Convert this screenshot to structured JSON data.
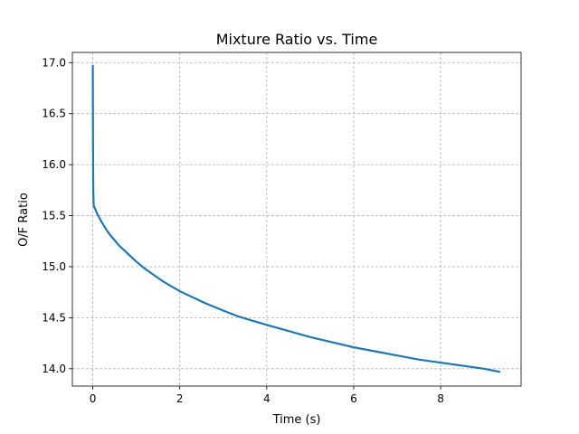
{
  "chart_data": {
    "type": "line",
    "title": "Mixture Ratio vs. Time",
    "xlabel": "Time (s)",
    "ylabel": "O/F Ratio",
    "xlim": [
      -0.47,
      9.85
    ],
    "ylim": [
      13.83,
      17.1
    ],
    "xticks": [
      0,
      2,
      4,
      6,
      8
    ],
    "yticks": [
      14.0,
      14.5,
      15.0,
      15.5,
      16.0,
      16.5,
      17.0
    ],
    "grid": true,
    "series": [
      {
        "color": "#1f77b4",
        "x": [
          0,
          0.005,
          0.01,
          0.02,
          0.05,
          0.1,
          0.2,
          0.3,
          0.4,
          0.5,
          0.6,
          0.8,
          1.0,
          1.2,
          1.4,
          1.6,
          1.8,
          2.0,
          2.3,
          2.6,
          3.0,
          3.3,
          3.6,
          4.0,
          4.5,
          5.0,
          5.5,
          6.0,
          6.5,
          7.0,
          7.5,
          8.0,
          8.5,
          9.0,
          9.35
        ],
        "y": [
          16.97,
          16.2,
          15.75,
          15.6,
          15.57,
          15.52,
          15.44,
          15.37,
          15.31,
          15.26,
          15.21,
          15.13,
          15.05,
          14.98,
          14.92,
          14.86,
          14.81,
          14.76,
          14.7,
          14.64,
          14.57,
          14.52,
          14.48,
          14.43,
          14.37,
          14.31,
          14.26,
          14.21,
          14.17,
          14.13,
          14.09,
          14.06,
          14.03,
          14.0,
          13.97
        ]
      }
    ]
  }
}
